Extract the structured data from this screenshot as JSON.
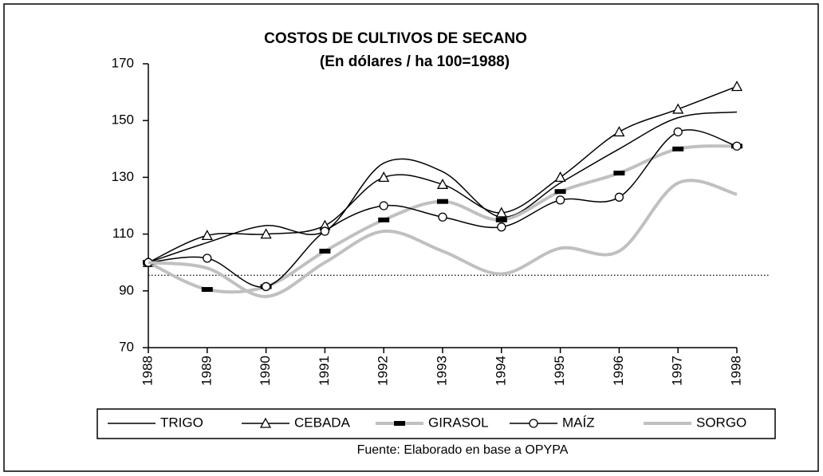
{
  "chart_data": {
    "type": "line",
    "title": "COSTOS DE CULTIVOS DE SECANO",
    "subtitle": "(En dólares / ha 100=1988)",
    "source": "Fuente: Elaborado en base a OPYPA",
    "x": [
      1988,
      1989,
      1990,
      1991,
      1992,
      1993,
      1994,
      1995,
      1996,
      1997,
      1998
    ],
    "xlim": [
      1988,
      1998
    ],
    "xticks": [
      1988,
      1989,
      1990,
      1991,
      1992,
      1993,
      1994,
      1995,
      1996,
      1997,
      1998
    ],
    "ylim": [
      70,
      170
    ],
    "yticks": [
      70,
      90,
      110,
      130,
      150,
      170
    ],
    "reference_line": 95.5,
    "series": [
      {
        "name": "TRIGO",
        "color": "#000000",
        "width": 1.5,
        "marker": null,
        "values": [
          100,
          107,
          113,
          111,
          135,
          132,
          116,
          128,
          140,
          151,
          153
        ]
      },
      {
        "name": "CEBADA",
        "color": "#000000",
        "width": 1.5,
        "marker": "triangle",
        "values": [
          100,
          109.5,
          110,
          113,
          130,
          127.5,
          117.5,
          130,
          146,
          154,
          162
        ]
      },
      {
        "name": "GIRASOL",
        "color": "#c0c0c0",
        "width": 4,
        "marker": "dash",
        "values": [
          100,
          90.5,
          91.5,
          104,
          115,
          121.5,
          115,
          125,
          131.5,
          140,
          141
        ]
      },
      {
        "name": "MAÍZ",
        "color": "#000000",
        "width": 1.5,
        "marker": "circle",
        "values": [
          100,
          101.5,
          91.5,
          111,
          120,
          116,
          112.5,
          122,
          123,
          146,
          141
        ]
      },
      {
        "name": "SORGO",
        "color": "#c0c0c0",
        "width": 4,
        "marker": null,
        "values": [
          100,
          98,
          88,
          100,
          111,
          104,
          96,
          105,
          104,
          128,
          124
        ]
      }
    ]
  }
}
